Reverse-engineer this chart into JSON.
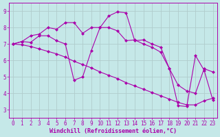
{
  "xlabel": "Windchill (Refroidissement éolien,°C)",
  "bg_color": "#c5e8e8",
  "line_color": "#aa00aa",
  "grid_color": "#b0cccc",
  "xlim": [
    -0.5,
    23.5
  ],
  "ylim": [
    2.5,
    9.5
  ],
  "yticks": [
    3,
    4,
    5,
    6,
    7,
    8,
    9
  ],
  "xticks": [
    0,
    1,
    2,
    3,
    4,
    5,
    6,
    7,
    8,
    9,
    10,
    11,
    12,
    13,
    14,
    15,
    16,
    17,
    18,
    19,
    20,
    21,
    22,
    23
  ],
  "line1_x": [
    0,
    1,
    2,
    3,
    4,
    5,
    6,
    7,
    8,
    9,
    10,
    11,
    12,
    13,
    14,
    15,
    16,
    17,
    18,
    19,
    20,
    21,
    22,
    23
  ],
  "line1_y": [
    7.0,
    7.15,
    7.1,
    7.5,
    7.5,
    7.2,
    7.0,
    4.8,
    5.0,
    6.6,
    8.0,
    8.7,
    8.95,
    8.9,
    7.2,
    7.25,
    7.0,
    6.8,
    5.5,
    3.25,
    3.2,
    6.3,
    5.4,
    3.6
  ],
  "line2_x": [
    0,
    1,
    2,
    3,
    4,
    5,
    6,
    7,
    8,
    9,
    10,
    11,
    12,
    13,
    14,
    15,
    16,
    17,
    18,
    19,
    20,
    21,
    22,
    23
  ],
  "line2_y": [
    7.0,
    7.15,
    7.5,
    7.6,
    8.0,
    7.9,
    8.3,
    8.3,
    7.65,
    8.0,
    8.0,
    8.0,
    7.8,
    7.2,
    7.25,
    7.0,
    6.8,
    6.5,
    5.5,
    4.5,
    4.15,
    4.0,
    5.5,
    5.3
  ],
  "line3_x": [
    0,
    1,
    2,
    3,
    4,
    5,
    6,
    7,
    8,
    9,
    10,
    11,
    12,
    13,
    14,
    15,
    16,
    17,
    18,
    19,
    20,
    21,
    22,
    23
  ],
  "line3_y": [
    7.0,
    6.95,
    6.85,
    6.7,
    6.55,
    6.4,
    6.2,
    5.95,
    5.75,
    5.55,
    5.3,
    5.1,
    4.9,
    4.65,
    4.45,
    4.25,
    4.05,
    3.85,
    3.65,
    3.45,
    3.3,
    3.3,
    3.55,
    3.7
  ],
  "marker": "D",
  "markersize": 2.0,
  "linewidth": 0.8,
  "tick_fontsize": 5.5,
  "xlabel_fontsize": 6.0
}
